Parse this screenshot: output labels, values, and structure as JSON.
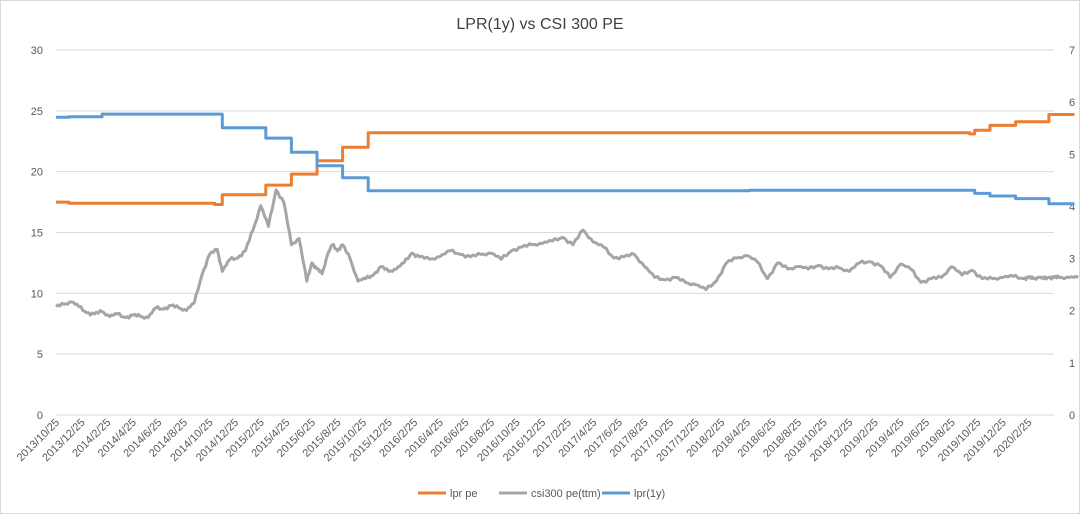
{
  "chart_data": {
    "type": "line",
    "title": "LPR(1y) vs CSI 300 PE",
    "xlabel": "",
    "ylabel": "",
    "y_left": {
      "lim": [
        0,
        30
      ],
      "ticks": [
        "0",
        "5",
        "10",
        "15",
        "20",
        "25",
        "30"
      ]
    },
    "y_right": {
      "lim": [
        0,
        7
      ],
      "ticks": [
        "0",
        "1",
        "2",
        "3",
        "4",
        "5",
        "6",
        "7"
      ]
    },
    "x_tick_labels": [
      "2013/10/25",
      "2013/12/25",
      "2014/2/25",
      "2014/4/25",
      "2014/6/25",
      "2014/8/25",
      "2014/10/25",
      "2014/12/25",
      "2015/2/25",
      "2015/4/25",
      "2015/6/25",
      "2015/8/25",
      "2015/10/25",
      "2015/12/25",
      "2016/2/25",
      "2016/4/25",
      "2016/6/25",
      "2016/8/25",
      "2016/10/25",
      "2016/12/25",
      "2017/2/25",
      "2017/4/25",
      "2017/6/25",
      "2017/8/25",
      "2017/10/25",
      "2017/12/25",
      "2018/2/25",
      "2018/4/25",
      "2018/6/25",
      "2018/8/25",
      "2018/10/25",
      "2018/12/25",
      "2019/2/25",
      "2019/4/25",
      "2019/6/25",
      "2019/8/25",
      "2019/10/25",
      "2019/12/25",
      "2020/2/25"
    ],
    "grid": true,
    "legend_position": "bottom",
    "series": [
      {
        "name": "lpr pe",
        "axis": "left",
        "color": "#ED7D31",
        "x": [
          0,
          0.5,
          6.2,
          6.5,
          8.2,
          9.2,
          10.2,
          11.2,
          12.2,
          27.1,
          35.7,
          35.9,
          36.5,
          37.5,
          38.8,
          39.8
        ],
        "values": [
          17.5,
          17.4,
          17.3,
          18.1,
          18.9,
          19.8,
          20.9,
          22.0,
          23.2,
          23.2,
          23.1,
          23.4,
          23.8,
          24.1,
          24.7,
          24.7
        ]
      },
      {
        "name": "csi300 pe(ttm)",
        "axis": "left",
        "color": "#A5A5A5",
        "x": [
          0,
          0.3,
          0.6,
          0.9,
          1.2,
          1.5,
          1.8,
          2.1,
          2.4,
          2.7,
          3.0,
          3.3,
          3.6,
          3.9,
          4.2,
          4.5,
          4.8,
          5.1,
          5.4,
          5.7,
          6.0,
          6.3,
          6.5,
          6.8,
          7.1,
          7.4,
          7.7,
          8.0,
          8.3,
          8.6,
          8.9,
          9.2,
          9.5,
          9.8,
          10.0,
          10.2,
          10.4,
          10.6,
          10.8,
          11.0,
          11.2,
          11.5,
          11.8,
          12.1,
          12.4,
          12.7,
          13.0,
          13.3,
          13.6,
          13.9,
          14.2,
          14.6,
          15.0,
          15.4,
          15.8,
          16.2,
          16.6,
          17.0,
          17.4,
          17.8,
          18.2,
          18.6,
          19.0,
          19.4,
          19.8,
          20.2,
          20.6,
          21.0,
          21.4,
          21.8,
          22.2,
          22.6,
          23.0,
          23.4,
          23.8,
          24.2,
          24.6,
          25.0,
          25.4,
          25.8,
          26.2,
          26.6,
          27.0,
          27.4,
          27.8,
          28.2,
          28.6,
          29.0,
          29.4,
          29.8,
          30.2,
          30.6,
          31.0,
          31.4,
          31.8,
          32.2,
          32.6,
          33.0,
          33.4,
          33.8,
          34.2,
          34.6,
          35.0,
          35.4,
          35.8,
          36.2,
          36.6,
          37.0,
          37.4,
          37.8,
          38.0,
          38.2,
          38.4,
          38.6,
          38.8,
          39.0,
          39.2,
          39.6,
          39.95
        ],
        "values": [
          8.9,
          9.1,
          9.3,
          8.9,
          8.4,
          8.3,
          8.5,
          8.1,
          8.3,
          8.0,
          8.2,
          8.1,
          8.0,
          8.8,
          8.7,
          9.0,
          8.8,
          8.6,
          9.2,
          11.5,
          13.2,
          13.6,
          11.8,
          12.8,
          12.9,
          13.5,
          15.2,
          17.2,
          15.5,
          18.5,
          17.5,
          14.0,
          14.5,
          11.0,
          12.5,
          12.0,
          11.6,
          13.1,
          14.0,
          13.5,
          14.0,
          12.8,
          11.0,
          11.2,
          11.5,
          12.2,
          11.8,
          12.0,
          12.5,
          13.3,
          13.0,
          12.8,
          13.0,
          13.5,
          13.2,
          13.0,
          13.2,
          13.3,
          12.8,
          13.5,
          13.8,
          14.0,
          14.1,
          14.3,
          14.6,
          14.0,
          15.2,
          14.2,
          13.8,
          12.9,
          13.0,
          13.2,
          12.2,
          11.3,
          11.1,
          11.3,
          10.9,
          10.7,
          10.3,
          11.0,
          12.5,
          12.9,
          13.1,
          12.6,
          11.2,
          12.5,
          12.0,
          12.2,
          12.0,
          12.3,
          12.0,
          12.1,
          11.8,
          12.5,
          12.6,
          12.3,
          11.3,
          12.4,
          12.0,
          10.9,
          11.2,
          11.3,
          12.2,
          11.5,
          11.9,
          11.2,
          11.2,
          11.3,
          11.4,
          11.2,
          11.3,
          11.2,
          11.3,
          11.2,
          11.3,
          11.3,
          11.3,
          11.3,
          11.3
        ],
        "values_note": ""
      },
      {
        "name": "lpr(1y)",
        "axis": "right",
        "color": "#5B9BD5",
        "x": [
          0,
          0.5,
          1.8,
          6.2,
          6.5,
          8.2,
          9.2,
          10.2,
          11.2,
          12.2,
          27.1,
          35.7,
          35.9,
          36.5,
          37.5,
          38.8,
          39.8
        ],
        "values": [
          5.71,
          5.72,
          5.77,
          5.77,
          5.51,
          5.31,
          5.04,
          4.78,
          4.55,
          4.3,
          4.31,
          4.31,
          4.25,
          4.2,
          4.15,
          4.05,
          4.05
        ]
      }
    ]
  }
}
